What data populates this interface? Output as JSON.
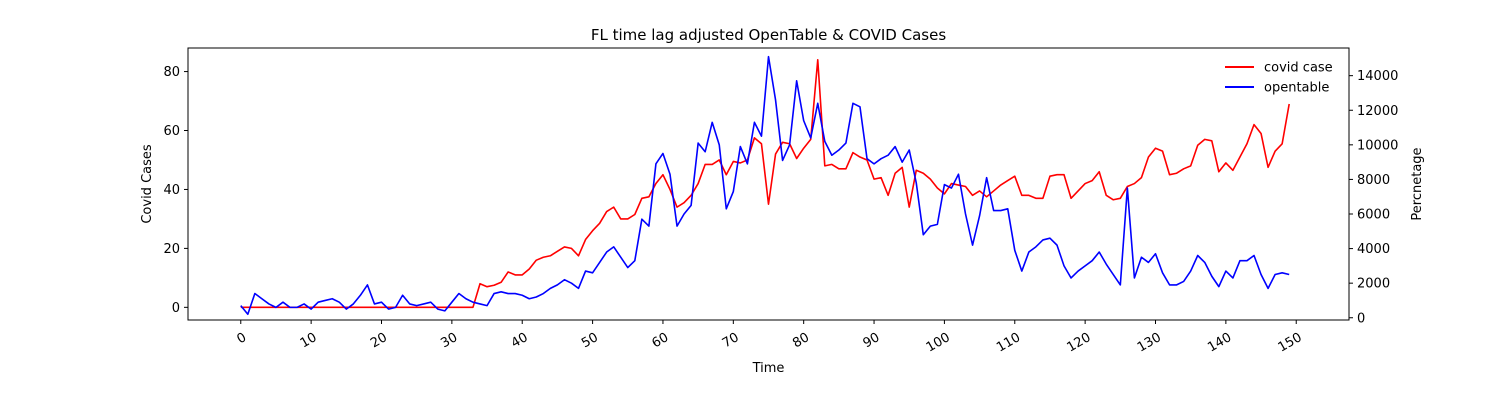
{
  "chart_data": {
    "type": "line",
    "title": "FL time lag adjusted OpenTable & COVID Cases",
    "xlabel": "Time",
    "ylabel_left": "Covid Cases",
    "ylabel_right": "Percnetage",
    "xlim": [
      -7.5,
      157.5
    ],
    "ylim_left": [
      -4.3,
      88
    ],
    "ylim_right": [
      -130,
      15600
    ],
    "x_ticks": [
      0,
      10,
      20,
      30,
      40,
      50,
      60,
      70,
      80,
      90,
      100,
      110,
      120,
      130,
      140,
      150
    ],
    "y_ticks_left": [
      0,
      20,
      40,
      60,
      80
    ],
    "y_ticks_right": [
      0,
      2000,
      4000,
      6000,
      8000,
      10000,
      12000,
      14000
    ],
    "legend_position": "top-right",
    "grid": false,
    "series": [
      {
        "name": "covid case",
        "axis": "left",
        "color": "#ff0000",
        "values": [
          0,
          0,
          0,
          0,
          0,
          0,
          0,
          0,
          0,
          0,
          0,
          0,
          0,
          0,
          0,
          0,
          0,
          0,
          0,
          0,
          0,
          0,
          0,
          0,
          0,
          0,
          0,
          0,
          0,
          0,
          0,
          0,
          0,
          0,
          8,
          7,
          7.5,
          8.5,
          12,
          11,
          11,
          13,
          16,
          17,
          17.5,
          19,
          20.5,
          20,
          17.5,
          23,
          26,
          28.5,
          32.5,
          34,
          30,
          30,
          31.5,
          37,
          37.5,
          42,
          45,
          40,
          34,
          35.5,
          38,
          42,
          48.5,
          48.5,
          50,
          45,
          49.5,
          49,
          50,
          57.5,
          55.5,
          35,
          52,
          56,
          55.5,
          50.5,
          54,
          57,
          84,
          48,
          48.5,
          47,
          47,
          52.5,
          51,
          50,
          43.5,
          44,
          38,
          45.5,
          47.5,
          34,
          46.5,
          45.5,
          43.5,
          40.5,
          38.5,
          42,
          41.5,
          41,
          38,
          39.5,
          37.5,
          39.5,
          41.5,
          43,
          44.5,
          38,
          38,
          37,
          37,
          44.5,
          45,
          45,
          37,
          39.5,
          42,
          43,
          46,
          38,
          36.5,
          37,
          41,
          42,
          44,
          51,
          54,
          53,
          45,
          45.5,
          47,
          48,
          55,
          57,
          56.5,
          46,
          49,
          46.5,
          51,
          55.5,
          62,
          59,
          47.5,
          53,
          55.5,
          69
        ]
      },
      {
        "name": "opentable",
        "axis": "right",
        "color": "#0000ff",
        "values": [
          700,
          200,
          1400,
          1100,
          800,
          600,
          900,
          600,
          600,
          800,
          500,
          900,
          1000,
          1100,
          900,
          500,
          800,
          1300,
          1900,
          800,
          900,
          500,
          600,
          1300,
          800,
          700,
          800,
          900,
          500,
          400,
          900,
          1400,
          1100,
          900,
          800,
          700,
          1400,
          1500,
          1400,
          1400,
          1300,
          1100,
          1200,
          1400,
          1700,
          1900,
          2200,
          2000,
          1700,
          2700,
          2600,
          3200,
          3800,
          4100,
          3500,
          2900,
          3300,
          5700,
          5300,
          8900,
          9500,
          8300,
          5300,
          6000,
          6500,
          10100,
          9600,
          11300,
          10000,
          6300,
          7300,
          9900,
          8900,
          11300,
          10500,
          15100,
          12600,
          9100,
          10000,
          13700,
          11400,
          10400,
          12400,
          10200,
          9400,
          9700,
          10100,
          12400,
          12200,
          9200,
          8900,
          9200,
          9400,
          9900,
          9000,
          9700,
          7800,
          4800,
          5300,
          5400,
          7700,
          7500,
          8300,
          6000,
          4200,
          5900,
          8100,
          6200,
          6200,
          6300,
          3900,
          2700,
          3800,
          4100,
          4500,
          4600,
          4200,
          3000,
          2300,
          2700,
          3000,
          3300,
          3800,
          3100,
          2500,
          1900,
          7500,
          2300,
          3500,
          3200,
          3700,
          2600,
          1900,
          1900,
          2100,
          2700,
          3600,
          3200,
          2400,
          1800,
          2700,
          2300,
          3300,
          3300,
          3600,
          2500,
          1700,
          2500,
          2600,
          2500
        ]
      }
    ]
  }
}
